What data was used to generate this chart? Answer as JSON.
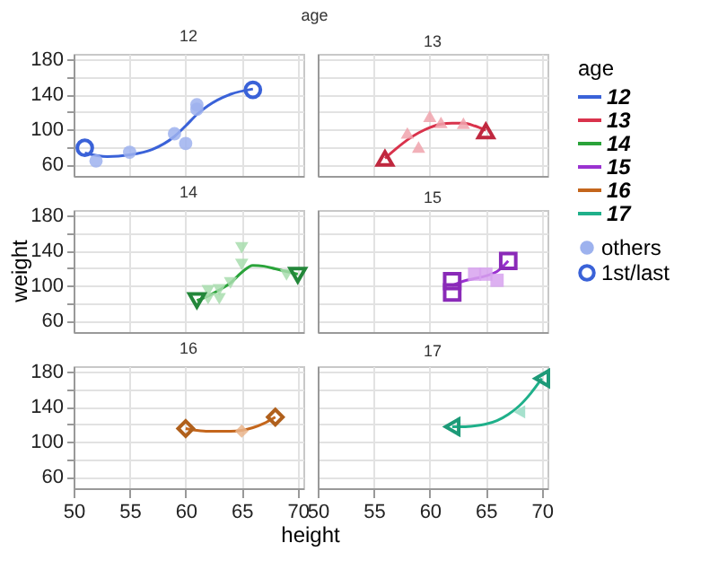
{
  "chart_data": [
    {
      "type": "scatter",
      "title": "12",
      "legend_title": "age",
      "legend": "right",
      "tick_labels": "y",
      "xlim": [
        50,
        70.5
      ],
      "ylim": [
        47,
        186
      ],
      "xticks": [
        50,
        55,
        60,
        65,
        70
      ],
      "yticks": [
        60,
        {
          "value": 80,
          "label": null
        },
        100,
        {
          "value": 120,
          "label": null
        },
        140,
        {
          "value": 160,
          "label": null
        },
        180
      ],
      "grid": true,
      "series": [
        {
          "type": "line",
          "name": "12",
          "color": "#3a62d8",
          "x": [
            51,
            53,
            55,
            57,
            59,
            60,
            61,
            62,
            64,
            66
          ],
          "values": [
            73,
            69,
            71,
            77,
            92,
            104,
            117,
            127,
            140,
            146
          ]
        },
        {
          "name": "others",
          "color": "#9db2ee",
          "marker": "circle",
          "x": [
            52,
            55,
            59,
            60,
            61,
            61
          ],
          "values": [
            64,
            74,
            95,
            84,
            123,
            128
          ]
        },
        {
          "name": "1st/last",
          "color": "#3a62d8",
          "marker": "circle",
          "x": [
            51,
            66
          ],
          "values": [
            79,
            145
          ]
        }
      ]
    },
    {
      "type": "scatter",
      "title": "13",
      "tick_labels": false,
      "xlim": [
        50,
        70.5
      ],
      "ylim": [
        47,
        186
      ],
      "xticks": [
        50,
        55,
        60,
        65,
        70
      ],
      "yticks": [
        60,
        {
          "value": 80,
          "label": null
        },
        100,
        {
          "value": 120,
          "label": null
        },
        140,
        {
          "value": 160,
          "label": null
        },
        180
      ],
      "grid": true,
      "series": [
        {
          "type": "line",
          "name": "13",
          "color": "#d9334c",
          "x": [
            56,
            57,
            58,
            59,
            60,
            61,
            62,
            63,
            64,
            65
          ],
          "values": [
            67,
            78,
            88,
            96,
            102,
            106,
            107,
            107,
            104,
            99
          ]
        },
        {
          "color": "#f0a3ad",
          "marker": "triangle",
          "x": [
            58,
            59,
            60,
            61,
            63
          ],
          "values": [
            96,
            80,
            115,
            108,
            107
          ]
        },
        {
          "color": "#c0283f",
          "marker": "triangle",
          "x": [
            56,
            65
          ],
          "values": [
            67,
            98
          ]
        }
      ]
    },
    {
      "type": "scatter",
      "title": "14",
      "ylabel": "weight",
      "tick_labels": "y",
      "xlim": [
        50,
        70.5
      ],
      "ylim": [
        47,
        186
      ],
      "xticks": [
        50,
        55,
        60,
        65,
        70
      ],
      "yticks": [
        60,
        {
          "value": 80,
          "label": null
        },
        100,
        {
          "value": 120,
          "label": null
        },
        140,
        {
          "value": 160,
          "label": null
        },
        180
      ],
      "grid": true,
      "series": [
        {
          "type": "line",
          "name": "14",
          "color": "#2aa33a",
          "x": [
            61,
            62,
            63,
            64,
            65,
            66,
            67,
            68,
            69,
            70
          ],
          "values": [
            83,
            88,
            95,
            103,
            115,
            123,
            122,
            119,
            116,
            113
          ]
        },
        {
          "color": "#a8ddae",
          "marker": "triangle",
          "x": [
            62,
            62,
            63,
            63,
            64,
            65,
            65,
            69
          ],
          "values": [
            94,
            85,
            95,
            85,
            103,
            143,
            124,
            112
          ]
        },
        {
          "color": "#23873a",
          "marker": "triangle",
          "x": [
            61,
            70
          ],
          "values": [
            83,
            112
          ]
        }
      ]
    },
    {
      "type": "scatter",
      "title": "15",
      "tick_labels": false,
      "xlim": [
        50,
        70.5
      ],
      "ylim": [
        47,
        186
      ],
      "xticks": [
        50,
        55,
        60,
        65,
        70
      ],
      "yticks": [
        60,
        {
          "value": 80,
          "label": null
        },
        100,
        {
          "value": 120,
          "label": null
        },
        140,
        {
          "value": 160,
          "label": null
        },
        180
      ],
      "grid": true,
      "series": [
        {
          "type": "line",
          "name": "15",
          "color": "#9a32d0",
          "x": [
            62,
            63,
            64,
            65,
            66,
            67
          ],
          "values": [
            100,
            105,
            108,
            111,
            116,
            128
          ]
        },
        {
          "color": "#d7a2ee",
          "marker": "square",
          "x": [
            64,
            65,
            66
          ],
          "values": [
            113,
            113,
            106
          ]
        },
        {
          "color": "#8a2ab8",
          "marker": "square",
          "x": [
            62,
            62,
            67
          ],
          "values": [
            105,
            92,
            128
          ]
        }
      ]
    },
    {
      "type": "scatter",
      "title": "16",
      "xlabel": "height",
      "xlim": [
        50,
        70.5
      ],
      "ylim": [
        47,
        186
      ],
      "xticks": [
        50,
        55,
        60,
        65,
        70
      ],
      "yticks": [
        60,
        {
          "value": 80,
          "label": null
        },
        100,
        {
          "value": 120,
          "label": null
        },
        140,
        {
          "value": 160,
          "label": null
        },
        180
      ],
      "grid": true,
      "series": [
        {
          "type": "line",
          "name": "16",
          "color": "#c4661c",
          "x": [
            60,
            61,
            62,
            63,
            64,
            65,
            66,
            67,
            68
          ],
          "values": [
            115,
            113,
            112,
            112,
            112,
            113,
            116,
            121,
            128
          ]
        },
        {
          "color": "#eab58c",
          "marker": "diamond",
          "x": [
            65
          ],
          "values": [
            112
          ]
        },
        {
          "color": "#b0601c",
          "marker": "diamond",
          "x": [
            60,
            68
          ],
          "values": [
            115,
            128
          ]
        }
      ]
    },
    {
      "type": "scatter",
      "title": "17",
      "tick_labels": "x",
      "xlim": [
        50,
        70.5
      ],
      "ylim": [
        47,
        186
      ],
      "xticks": [
        50,
        55,
        60,
        65,
        70
      ],
      "yticks": [
        60,
        {
          "value": 80,
          "label": null
        },
        100,
        {
          "value": 120,
          "label": null
        },
        140,
        {
          "value": 160,
          "label": null
        },
        180
      ],
      "grid": true,
      "series": [
        {
          "type": "line",
          "name": "17",
          "color": "#1fb08a",
          "x": [
            62,
            63,
            64,
            65,
            66,
            67,
            68,
            69,
            70
          ],
          "values": [
            117,
            117,
            118,
            120,
            124,
            131,
            141,
            155,
            172
          ]
        },
        {
          "color": "#96dcc4",
          "marker": "triangle",
          "x": [
            68
          ],
          "values": [
            134
          ]
        },
        {
          "color": "#1d9a78",
          "marker": "triangle",
          "x": [
            62,
            70
          ],
          "values": [
            117,
            172
          ]
        }
      ]
    }
  ]
}
